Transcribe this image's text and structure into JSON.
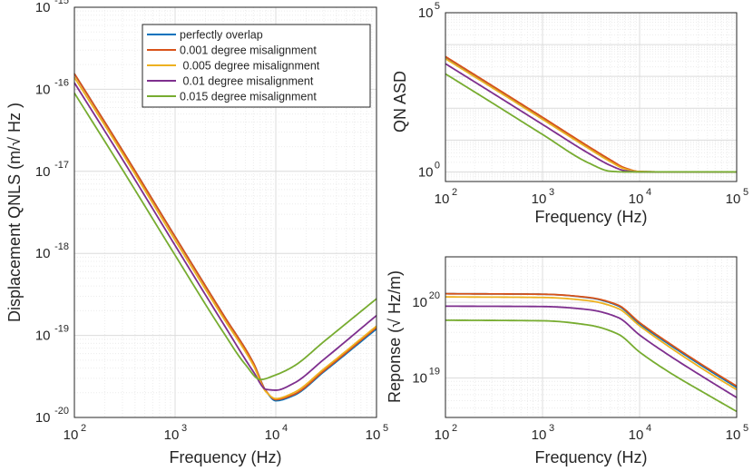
{
  "chart_data": [
    {
      "id": "qnls",
      "type": "line",
      "title": "",
      "xlabel": "Frequency (Hz)",
      "ylabel": "Displacement QNLS (m/√ Hz )",
      "xscale": "log",
      "yscale": "log",
      "xlim": [
        100,
        100000
      ],
      "ylim": [
        1e-20,
        1e-15
      ],
      "grid": true,
      "legend_position": "top-right",
      "x_ticks": [
        {
          "value": 100,
          "base": "10",
          "exp": "2"
        },
        {
          "value": 1000,
          "base": "10",
          "exp": "3"
        },
        {
          "value": 10000,
          "base": "10",
          "exp": "4"
        },
        {
          "value": 100000,
          "base": "10",
          "exp": "5"
        }
      ],
      "y_ticks": [
        {
          "value": 1e-15,
          "base": "10",
          "exp": "-15"
        },
        {
          "value": 1e-16,
          "base": "10",
          "exp": "-16"
        },
        {
          "value": 1e-17,
          "base": "10",
          "exp": "-17"
        },
        {
          "value": 1e-18,
          "base": "10",
          "exp": "-18"
        },
        {
          "value": 1e-19,
          "base": "10",
          "exp": "-19"
        },
        {
          "value": 1e-20,
          "base": "10",
          "exp": "-20"
        }
      ],
      "series": [
        {
          "name": "perfectly overlap",
          "color": "#0072BD",
          "x": [
            100,
            300,
            1000,
            3000,
            6000,
            8000,
            10000,
            15000,
            30000,
            100000
          ],
          "y": [
            1.55e-16,
            1.8e-17,
            1.6e-18,
            1.8e-19,
            4.6e-20,
            2.1e-20,
            1.6e-20,
            1.85e-20,
            3.6e-20,
            1.2e-19
          ]
        },
        {
          "name": "0.001 degree misalignment",
          "color": "#D95319",
          "x": [
            100,
            300,
            1000,
            3000,
            6000,
            8000,
            10000,
            15000,
            30000,
            100000
          ],
          "y": [
            1.55e-16,
            1.8e-17,
            1.6e-18,
            1.8e-19,
            4.6e-20,
            2.1e-20,
            1.65e-20,
            1.9e-20,
            3.7e-20,
            1.25e-19
          ]
        },
        {
          "name": " 0.005 degree misalignment",
          "color": "#EDB120",
          "x": [
            100,
            300,
            1000,
            3000,
            6000,
            8000,
            10000,
            15000,
            30000,
            100000
          ],
          "y": [
            1.4e-16,
            1.65e-17,
            1.45e-18,
            1.65e-19,
            4.3e-20,
            2.05e-20,
            1.7e-20,
            2e-20,
            3.9e-20,
            1.3e-19
          ]
        },
        {
          "name": " 0.01 degree misalignment",
          "color": "#7E2F8E",
          "x": [
            100,
            300,
            1000,
            3000,
            6000,
            8000,
            10000,
            15000,
            30000,
            100000
          ],
          "y": [
            1.2e-16,
            1.4e-17,
            1.25e-18,
            1.4e-19,
            3.6e-20,
            2.2e-20,
            2.15e-20,
            2.6e-20,
            5.1e-20,
            1.75e-19
          ]
        },
        {
          "name": "0.015 degree misalignment",
          "color": "#77AC30",
          "x": [
            100,
            300,
            1000,
            3000,
            5000,
            7000,
            10000,
            15000,
            30000,
            100000
          ],
          "y": [
            9e-17,
            1.05e-17,
            9.5e-19,
            1.1e-19,
            4.4e-20,
            2.9e-20,
            3.3e-20,
            4.2e-20,
            8.4e-20,
            2.8e-19
          ]
        }
      ]
    },
    {
      "id": "qn-asd",
      "type": "line",
      "title": "",
      "xlabel": "Frequency (Hz)",
      "ylabel": "QN ASD",
      "xscale": "log",
      "yscale": "log",
      "xlim": [
        100,
        100000
      ],
      "ylim": [
        0.5,
        100000
      ],
      "grid": true,
      "x_ticks": [
        {
          "value": 100,
          "base": "10",
          "exp": "2"
        },
        {
          "value": 1000,
          "base": "10",
          "exp": "3"
        },
        {
          "value": 10000,
          "base": "10",
          "exp": "4"
        },
        {
          "value": 100000,
          "base": "10",
          "exp": "5"
        }
      ],
      "y_ticks": [
        {
          "value": 100000,
          "base": "10",
          "exp": "5"
        },
        {
          "value": 1,
          "base": "10",
          "exp": "0"
        }
      ],
      "series": [
        {
          "name": "perfectly overlap",
          "color": "#0072BD",
          "x": [
            100,
            300,
            1000,
            3000,
            5000,
            7000,
            10000,
            20000,
            100000
          ],
          "y": [
            4000,
            500,
            50,
            6,
            2.3,
            1.3,
            1.02,
            1.0,
            1.0
          ]
        },
        {
          "name": "0.001 degree misalignment",
          "color": "#D95319",
          "x": [
            100,
            300,
            1000,
            3000,
            5000,
            7000,
            10000,
            20000,
            100000
          ],
          "y": [
            4200,
            520,
            52,
            6.2,
            2.4,
            1.35,
            1.03,
            1.0,
            1.0
          ]
        },
        {
          "name": " 0.005 degree misalignment",
          "color": "#EDB120",
          "x": [
            100,
            300,
            1000,
            3000,
            5000,
            7000,
            10000,
            20000,
            100000
          ],
          "y": [
            3600,
            450,
            45,
            5.4,
            2.1,
            1.25,
            1.02,
            1.0,
            1.0
          ]
        },
        {
          "name": " 0.01 degree misalignment",
          "color": "#7E2F8E",
          "x": [
            100,
            300,
            1000,
            3000,
            5000,
            7000,
            10000,
            20000,
            100000
          ],
          "y": [
            2500,
            310,
            31,
            3.8,
            1.6,
            1.1,
            1.0,
            1.0,
            1.0
          ]
        },
        {
          "name": "0.015 degree misalignment",
          "color": "#77AC30",
          "x": [
            100,
            300,
            1000,
            3000,
            5000,
            7000,
            10000,
            20000,
            100000
          ],
          "y": [
            1200,
            150,
            15,
            1.9,
            1.05,
            1.0,
            1.0,
            1.0,
            1.0
          ]
        }
      ]
    },
    {
      "id": "response",
      "type": "line",
      "title": "",
      "xlabel": "Frequency (Hz)",
      "ylabel": "Reponse (√ Hz/m)",
      "xscale": "log",
      "yscale": "log",
      "xlim": [
        100,
        100000
      ],
      "ylim": [
        3e+18,
        4e+20
      ],
      "grid": true,
      "x_ticks": [
        {
          "value": 100,
          "base": "10",
          "exp": "2"
        },
        {
          "value": 1000,
          "base": "10",
          "exp": "3"
        },
        {
          "value": 10000,
          "base": "10",
          "exp": "4"
        },
        {
          "value": 100000,
          "base": "10",
          "exp": "5"
        }
      ],
      "y_ticks": [
        {
          "value": 1e+20,
          "base": "10",
          "exp": "20"
        },
        {
          "value": 1e+19,
          "base": "10",
          "exp": "19"
        }
      ],
      "series": [
        {
          "name": "perfectly overlap",
          "color": "#0072BD",
          "x": [
            100,
            1000,
            3000,
            6000,
            10000,
            20000,
            50000,
            100000
          ],
          "y": [
            1.3e+20,
            1.28e+20,
            1.15e+20,
            9e+19,
            5.2e+19,
            2.8e+19,
            1.3e+19,
            7.5e+18
          ]
        },
        {
          "name": "0.001 degree misalignment",
          "color": "#D95319",
          "x": [
            100,
            1000,
            3000,
            6000,
            10000,
            20000,
            50000,
            100000
          ],
          "y": [
            1.3e+20,
            1.28e+20,
            1.16e+20,
            9.2e+19,
            5.4e+19,
            2.9e+19,
            1.35e+19,
            7.8e+18
          ]
        },
        {
          "name": " 0.005 degree misalignment",
          "color": "#EDB120",
          "x": [
            100,
            1000,
            3000,
            6000,
            10000,
            20000,
            50000,
            100000
          ],
          "y": [
            1.18e+20,
            1.16e+20,
            1.05e+20,
            8.3e+19,
            4.9e+19,
            2.6e+19,
            1.2e+19,
            7e+18
          ]
        },
        {
          "name": " 0.01 degree misalignment",
          "color": "#7E2F8E",
          "x": [
            100,
            1000,
            3000,
            6000,
            10000,
            20000,
            50000,
            100000
          ],
          "y": [
            8.9e+19,
            8.8e+19,
            8e+19,
            6.3e+19,
            3.7e+19,
            2e+19,
            9.5e+18,
            5.5e+18
          ]
        },
        {
          "name": "0.015 degree misalignment",
          "color": "#77AC30",
          "x": [
            100,
            1000,
            3000,
            6000,
            10000,
            20000,
            50000,
            100000
          ],
          "y": [
            5.8e+19,
            5.7e+19,
            5e+19,
            3.8e+19,
            2.2e+19,
            1.2e+19,
            6e+18,
            3.6e+18
          ]
        }
      ]
    }
  ]
}
